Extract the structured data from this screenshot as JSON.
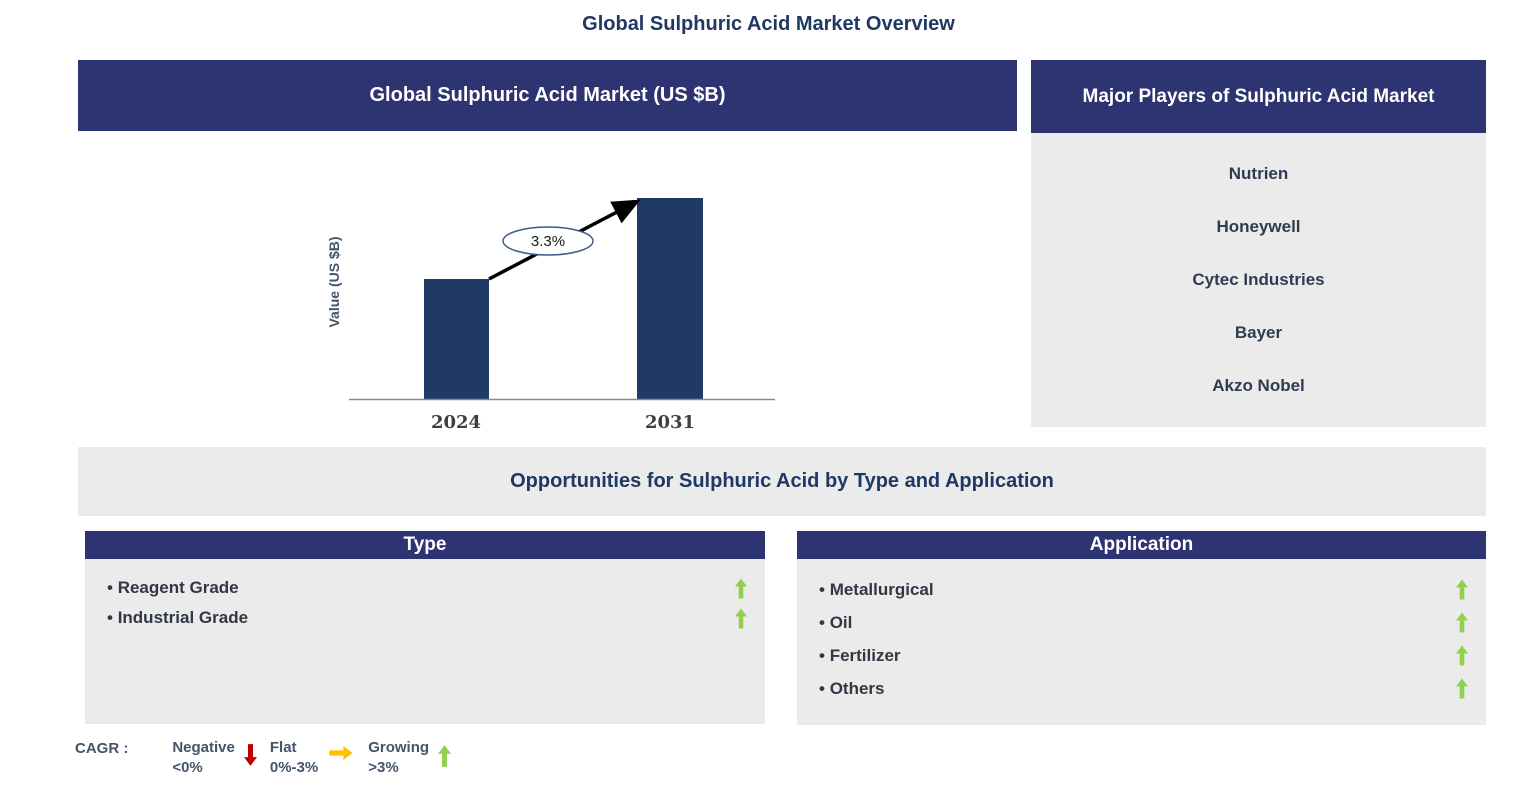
{
  "page": {
    "title": "Global Sulphuric Acid Market Overview"
  },
  "market_panel": {
    "header": "Global Sulphuric Acid Market (US $B)"
  },
  "chart_data": {
    "type": "bar",
    "categories": [
      "2024",
      "2031"
    ],
    "values": [
      120,
      201
    ],
    "value_unit": "relative-bar-height-px (no numeric y-axis shown)",
    "xlabel": "",
    "ylabel": "Value (US $B)",
    "annotation": "3.3%",
    "grid": false,
    "legend_position": "none"
  },
  "major_players": {
    "header": "Major Players of Sulphuric Acid Market",
    "items": [
      "Nutrien",
      "Honeywell",
      "Cytec Industries",
      "Bayer",
      "Akzo Nobel"
    ]
  },
  "opportunities": {
    "title": "Opportunities for Sulphuric Acid by Type and Application",
    "type_panel": {
      "header": "Type",
      "items": [
        {
          "label": "Reagent Grade",
          "trend": "growing"
        },
        {
          "label": "Industrial Grade",
          "trend": "growing"
        }
      ]
    },
    "application_panel": {
      "header": "Application",
      "items": [
        {
          "label": "Metallurgical",
          "trend": "growing"
        },
        {
          "label": "Oil",
          "trend": "growing"
        },
        {
          "label": "Fertilizer",
          "trend": "growing"
        },
        {
          "label": "Others",
          "trend": "growing"
        }
      ]
    }
  },
  "legend": {
    "prefix": "CAGR :",
    "items": [
      {
        "label": "Negative",
        "range": "<0%",
        "arrow": "down-arrow",
        "color": "#C00000"
      },
      {
        "label": "Flat",
        "range": "0%-3%",
        "arrow": "right-arrow",
        "color": "#FFC000"
      },
      {
        "label": "Growing",
        "range": ">3%",
        "arrow": "up-arrow",
        "color": "#92D050"
      }
    ]
  },
  "colors": {
    "navy_header": "#2E3371",
    "bar_fill": "#1F3A64",
    "panel_gray": "#EBEBEB",
    "title_navy": "#1F3864",
    "growing_green": "#92D050",
    "negative_red": "#C00000",
    "flat_yellow": "#FFC000"
  }
}
